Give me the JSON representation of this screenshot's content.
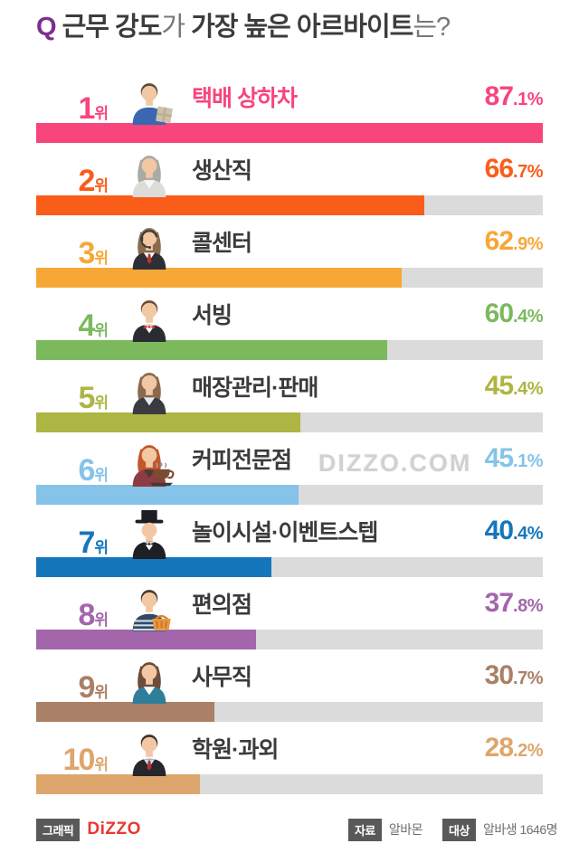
{
  "title": {
    "q": "Q",
    "segments": [
      {
        "text": "근무 강도",
        "style": "strong"
      },
      {
        "text": "가",
        "style": "light"
      },
      {
        "text": " 가장 높은 아르바이트",
        "style": "strong"
      },
      {
        "text": "는?",
        "style": "light"
      }
    ]
  },
  "labels": {
    "rank_suffix": "위"
  },
  "watermark": "DIZZO.COM",
  "footer": {
    "graphic_label": "그래픽",
    "logo": "DiZZO",
    "source_label": "자료",
    "source_value": "알바몬",
    "target_label": "대상",
    "target_value": "알바생 1646명"
  },
  "chart_data": {
    "type": "bar",
    "title": "근무 강도가 가장 높은 아르바이트는?",
    "unit": "%",
    "orientation": "horizontal",
    "bar_scale_max": 87.1,
    "track_color": "#dbdbdb",
    "ranks": [
      1,
      2,
      3,
      4,
      5,
      6,
      7,
      8,
      9,
      10
    ],
    "categories": [
      "택배 상하차",
      "생산직",
      "콜센터",
      "서빙",
      "매장관리·판매",
      "커피전문점",
      "놀이시설·이벤트스텝",
      "편의점",
      "사무직",
      "학원·과외"
    ],
    "values": [
      87.1,
      66.7,
      62.9,
      60.4,
      45.4,
      45.1,
      40.4,
      37.8,
      30.7,
      28.2
    ],
    "colors": [
      "#f8457c",
      "#fa5d1a",
      "#f7a735",
      "#7cb95d",
      "#adb642",
      "#85c3e9",
      "#1576bc",
      "#a366ab",
      "#aa8066",
      "#dda66c"
    ],
    "label_colors": [
      "#f8457c",
      "#3b3b3d",
      "#3b3b3d",
      "#3b3b3d",
      "#3b3b3d",
      "#3b3b3d",
      "#3b3b3d",
      "#3b3b3d",
      "#3b3b3d",
      "#3b3b3d"
    ],
    "icons": [
      {
        "name": "delivery-worker-icon",
        "style": "male",
        "hair": "#5d4a3c",
        "body": "#3a67b0",
        "shirt": "",
        "accessory": "box"
      },
      {
        "name": "production-worker-icon",
        "style": "female",
        "hair": "#a8aaa6",
        "body": "#dcdcd8",
        "shirt": "#f7f7f5",
        "accessory": ""
      },
      {
        "name": "call-center-agent-icon",
        "style": "female",
        "hair": "#8a6a4e",
        "body": "#2e2e36",
        "shirt": "#ffffff",
        "tie": "#b5322e",
        "accessory": "headset"
      },
      {
        "name": "waiter-icon",
        "style": "male",
        "hair": "#6d4c38",
        "body": "#2b2b31",
        "shirt": "#ffffff",
        "bow": "#c23437",
        "accessory": ""
      },
      {
        "name": "store-clerk-icon",
        "style": "female",
        "hair": "#8a6a4e",
        "body": "#3a3a41",
        "shirt": "#e9e9e9",
        "accessory": ""
      },
      {
        "name": "barista-icon",
        "style": "female",
        "hair": "#c2572b",
        "body": "#8e3b45",
        "shirt": "#4a3b35",
        "accessory": "cup"
      },
      {
        "name": "magician-icon",
        "style": "male",
        "hair": "",
        "body": "#1f1f26",
        "shirt": "#ffffff",
        "bow": "#23232a",
        "accessory": "hat"
      },
      {
        "name": "convenience-store-clerk-icon",
        "style": "male",
        "hair": "#4c3b2e",
        "body": "#2e4a68",
        "shirt": "",
        "stripes": true,
        "accessory": "basket"
      },
      {
        "name": "office-worker-icon",
        "style": "female",
        "hair": "#6d4c38",
        "body": "#2e7d99",
        "shirt": "#ffffff",
        "accessory": ""
      },
      {
        "name": "tutor-icon",
        "style": "male",
        "hair": "#3c332b",
        "body": "#26262d",
        "shirt": "#cfe2f2",
        "tie": "#b5322e",
        "accessory": ""
      }
    ]
  }
}
